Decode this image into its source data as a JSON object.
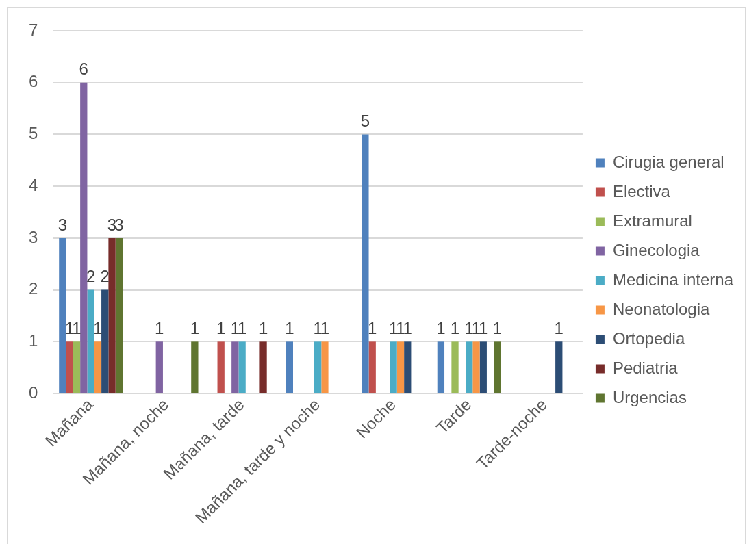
{
  "chart_data": {
    "type": "bar",
    "categories": [
      "Mañana",
      "Mañana, noche",
      "Mañana, tarde",
      "Mañana, tarde y noche",
      "Noche",
      "Tarde",
      "Tarde-noche"
    ],
    "series": [
      {
        "name": "Cirugia general",
        "color": "#4f81bd",
        "values": [
          3,
          null,
          null,
          1,
          5,
          1,
          null
        ]
      },
      {
        "name": "Electiva",
        "color": "#c0504d",
        "values": [
          1,
          null,
          1,
          null,
          1,
          null,
          null
        ]
      },
      {
        "name": "Extramural",
        "color": "#9bbb59",
        "values": [
          1,
          null,
          null,
          null,
          null,
          1,
          null
        ]
      },
      {
        "name": "Ginecologia",
        "color": "#8064a2",
        "values": [
          6,
          1,
          1,
          null,
          null,
          null,
          null
        ]
      },
      {
        "name": "Medicina interna",
        "color": "#4bacc6",
        "values": [
          2,
          null,
          1,
          1,
          1,
          1,
          null
        ]
      },
      {
        "name": "Neonatologia",
        "color": "#f79646",
        "values": [
          1,
          null,
          null,
          1,
          1,
          1,
          null
        ]
      },
      {
        "name": "Ortopedia",
        "color": "#2c4d75",
        "values": [
          2,
          null,
          null,
          null,
          1,
          1,
          1
        ]
      },
      {
        "name": "Pediatria",
        "color": "#772c2a",
        "values": [
          3,
          null,
          1,
          null,
          null,
          null,
          null
        ]
      },
      {
        "name": "Urgencias",
        "color": "#5f7530",
        "values": [
          3,
          1,
          null,
          null,
          null,
          1,
          null
        ]
      }
    ],
    "ylim": [
      0,
      7
    ],
    "yticks": [
      0,
      1,
      2,
      3,
      4,
      5,
      6,
      7
    ],
    "grid": "y",
    "legend": "right",
    "data_labels": true
  }
}
